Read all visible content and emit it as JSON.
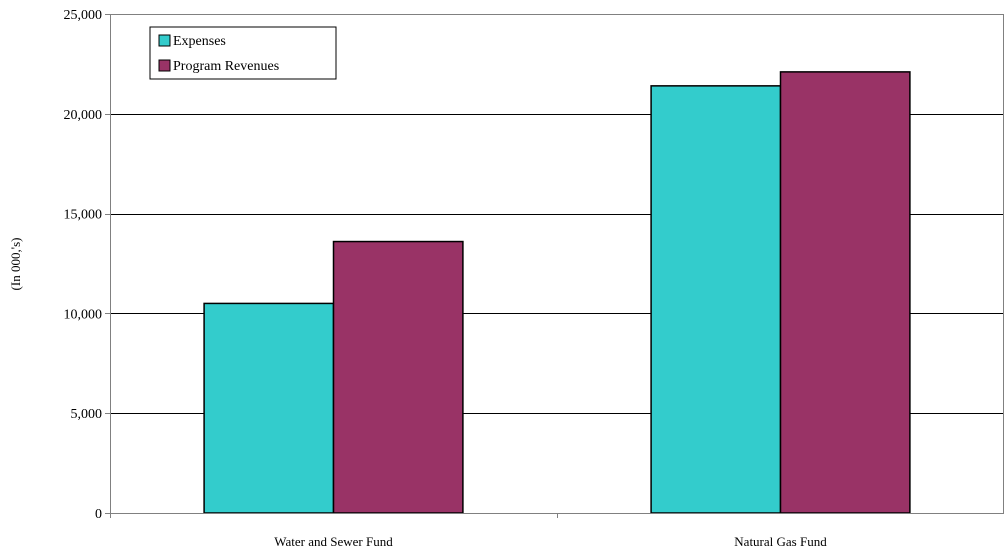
{
  "chart_data": {
    "type": "bar",
    "title": "",
    "xlabel": "",
    "ylabel": "(In 000,'s)",
    "categories": [
      "Water and Sewer Fund",
      "Natural Gas Fund"
    ],
    "series": [
      {
        "name": "Expenses",
        "values": [
          10500,
          21400
        ]
      },
      {
        "name": "Program Revenues",
        "values": [
          13600,
          22100
        ]
      }
    ],
    "ylim": [
      0,
      25000
    ],
    "yticks": [
      0,
      5000,
      10000,
      15000,
      20000,
      25000
    ],
    "ytick_labels": [
      "0",
      "5,000",
      "10,000",
      "15,000",
      "20,000",
      "25,000"
    ],
    "grid": true,
    "legend_position": "top-left"
  },
  "colors": {
    "series": [
      "#33CCCC",
      "#993366"
    ],
    "outline": "#000000",
    "grid": "#000000",
    "axis": "#808080"
  }
}
